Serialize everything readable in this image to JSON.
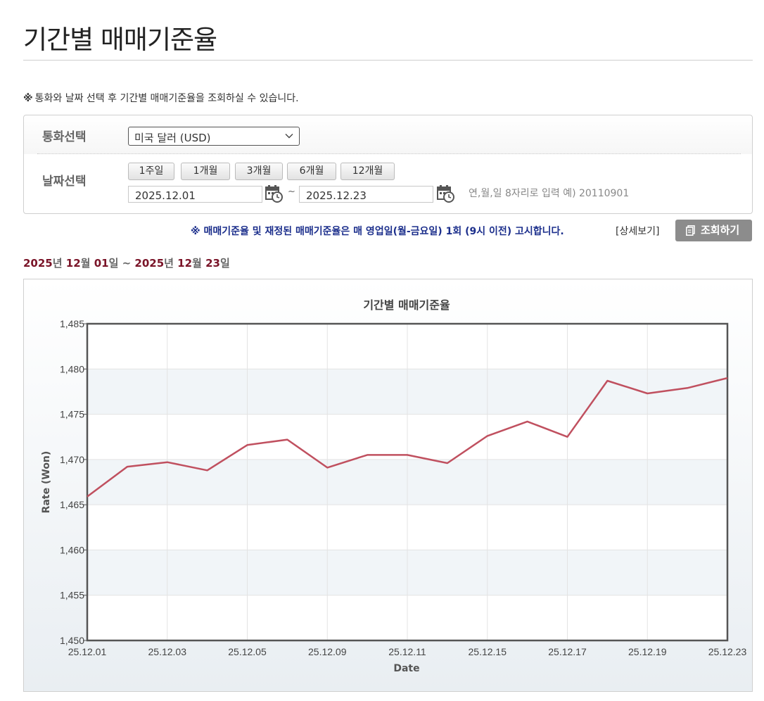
{
  "page": {
    "title": "기간별 매매기준율",
    "notice_mark": "※",
    "notice": "통화와 날짜 선택 후 기간별 매매기준율을 조회하실 수 있습니다."
  },
  "search": {
    "currency_label": "통화선택",
    "currency_value": "미국 달러 (USD)",
    "date_label": "날짜선택",
    "period_buttons": [
      "1주일",
      "1개월",
      "3개월",
      "6개월",
      "12개월"
    ],
    "start_date": "2025.12.01",
    "end_date": "2025.12.23",
    "tilde": "~",
    "date_hint": "연,월,일 8자리로 입력 예) 20110901"
  },
  "info": {
    "text": "※ 매매기준율 및 재정된 매매기준율은 매 영업일(월-금요일) 1회 (9시 이전) 고시합니다.",
    "detail_link": "[상세보기]",
    "inquiry_button": "조회하기"
  },
  "range": {
    "y1": "2025",
    "u_year1": "년 ",
    "m1": "12",
    "u_month1": "월 ",
    "d1": "01",
    "u_day1": "일 ~ ",
    "y2": "2025",
    "u_year2": "년 ",
    "m2": "12",
    "u_month2": "월 ",
    "d2": "23",
    "u_day2": "일"
  },
  "colors": {
    "line": "#c0505f",
    "range_highlight": "#7a1428",
    "info_text": "#1c2f8c"
  },
  "chart_data": {
    "type": "line",
    "title": "기간별 매매기준율",
    "xlabel": "Date",
    "ylabel": "Rate (Won)",
    "ylim": [
      1450,
      1485
    ],
    "yticks": [
      "1,450",
      "1,455",
      "1,460",
      "1,465",
      "1,470",
      "1,475",
      "1,480",
      "1,485"
    ],
    "x": [
      "25.12.01",
      "25.12.02",
      "25.12.03",
      "25.12.04",
      "25.12.05",
      "25.12.08",
      "25.12.09",
      "25.12.10",
      "25.12.11",
      "25.12.12",
      "25.12.15",
      "25.12.16",
      "25.12.17",
      "25.12.18",
      "25.12.19",
      "25.12.22",
      "25.12.23"
    ],
    "xtick_labels": [
      "25.12.01",
      "25.12.03",
      "25.12.05",
      "25.12.09",
      "25.12.11",
      "25.12.15",
      "25.12.17",
      "25.12.19",
      "25.12.23"
    ],
    "series": [
      {
        "values": [
          1465.9,
          1469.2,
          1469.7,
          1468.8,
          1471.6,
          1472.2,
          1469.1,
          1470.5,
          1470.5,
          1469.6,
          1472.6,
          1474.2,
          1472.5,
          1478.7,
          1477.3,
          1477.9,
          1479.0
        ]
      }
    ],
    "grid": true
  }
}
